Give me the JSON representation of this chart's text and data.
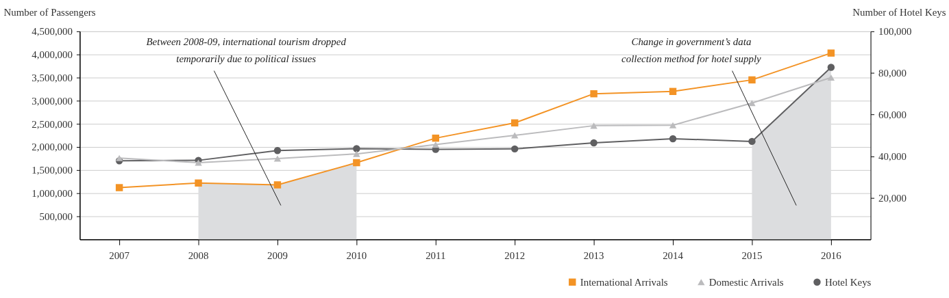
{
  "chart_data": {
    "type": "line",
    "categories": [
      "2007",
      "2008",
      "2009",
      "2010",
      "2011",
      "2012",
      "2013",
      "2014",
      "2015",
      "2016"
    ],
    "series": [
      {
        "type": "area",
        "color": "#dcdddf",
        "values": [
          null,
          1220000,
          1180000,
          1660000,
          null,
          null,
          null,
          null,
          null,
          null
        ]
      },
      {
        "type": "area",
        "color": "#dcdddf",
        "axis": "y2",
        "values": [
          null,
          null,
          null,
          null,
          null,
          null,
          null,
          null,
          47100,
          82700
        ]
      },
      {
        "name": "International Arrivals",
        "color": "#f39325",
        "marker": "square",
        "values": [
          1120000,
          1220000,
          1180000,
          1660000,
          2190000,
          2520000,
          3150000,
          3200000,
          3450000,
          4030000
        ]
      },
      {
        "name": "Domestic Arrivals",
        "color": "#bbbbbd",
        "marker": "triangle",
        "values": [
          1760000,
          1660000,
          1750000,
          1850000,
          2050000,
          2250000,
          2460000,
          2470000,
          2950000,
          3500000
        ]
      },
      {
        "name": "Hotel Keys",
        "color": "#5f5f61",
        "marker": "circle",
        "axis": "y2",
        "values": [
          37800,
          38000,
          42700,
          43600,
          43300,
          43500,
          46400,
          48400,
          47100,
          82700
        ]
      }
    ],
    "ylabel": "Number of Passengers",
    "y2label": "Number of Hotel Keys",
    "ylim": [
      0,
      4500000
    ],
    "yticks": [
      {
        "value": 500000,
        "label": "500,000"
      },
      {
        "value": 1000000,
        "label": "1,000,000"
      },
      {
        "value": 1500000,
        "label": "1,500,000"
      },
      {
        "value": 2000000,
        "label": "2,000,000"
      },
      {
        "value": 2500000,
        "label": "2,500,000"
      },
      {
        "value": 3000000,
        "label": "3,000,000"
      },
      {
        "value": 3500000,
        "label": "3,500,000"
      },
      {
        "value": 4000000,
        "label": "4,000,000"
      },
      {
        "value": 4500000,
        "label": "4,500,000"
      }
    ],
    "y2lim": [
      0,
      100000
    ],
    "y2ticks": [
      {
        "value": 20000,
        "label": "20,000"
      },
      {
        "value": 40000,
        "label": "40,000"
      },
      {
        "value": 60000,
        "label": "60,000"
      },
      {
        "value": 80000,
        "label": "80,000"
      },
      {
        "value": 100000,
        "label": "100,000"
      }
    ],
    "annotations": [
      "Between 2008-09, international tourism dropped\ntemporarily due to political issues",
      "Change in government’s data\ncollection method for hotel supply"
    ],
    "grid": "y",
    "legend": "bottom right",
    "line_style": "solid"
  }
}
